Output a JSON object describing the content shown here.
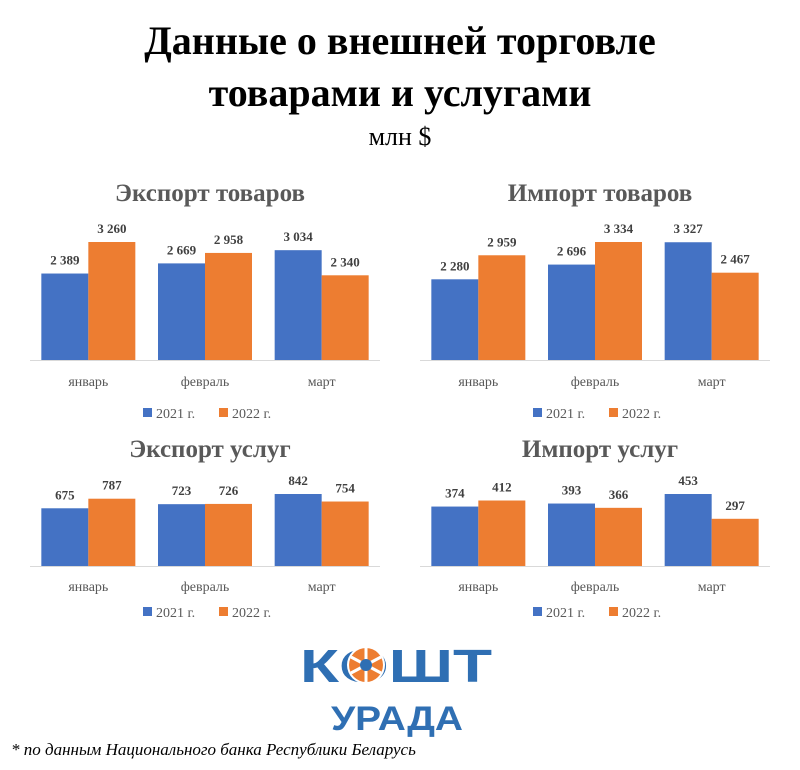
{
  "header": {
    "title_line1": "Данные о внешней торговле",
    "title_line2": "товарами и услугами",
    "unit": "млн $"
  },
  "colors": {
    "series_2021": "#4472c4",
    "series_2022": "#ed7d31"
  },
  "chart_data": [
    {
      "type": "bar",
      "title": "Экспорт товаров",
      "categories": [
        "январь",
        "февраль",
        "март"
      ],
      "series": [
        {
          "name": "2021 г.",
          "values": [
            2389,
            2669,
            3034
          ],
          "labels": [
            "2 389",
            "2 669",
            "3 034"
          ]
        },
        {
          "name": "2022 г.",
          "values": [
            3260,
            2958,
            2340
          ],
          "labels": [
            "3 260",
            "2 958",
            "2 340"
          ]
        }
      ],
      "ylim": [
        0,
        3600
      ]
    },
    {
      "type": "bar",
      "title": "Импорт товаров",
      "categories": [
        "январь",
        "февраль",
        "март"
      ],
      "series": [
        {
          "name": "2021 г.",
          "values": [
            2280,
            2696,
            3327
          ],
          "labels": [
            "2 280",
            "2 696",
            "3 327"
          ]
        },
        {
          "name": "2022 г.",
          "values": [
            2959,
            3334,
            2467
          ],
          "labels": [
            "2 959",
            "3 334",
            "2 467"
          ]
        }
      ],
      "ylim": [
        0,
        3600
      ]
    },
    {
      "type": "bar",
      "title": "Экспорт услуг",
      "categories": [
        "январь",
        "февраль",
        "март"
      ],
      "series": [
        {
          "name": "2021 г.",
          "values": [
            675,
            723,
            842
          ],
          "labels": [
            "675",
            "723",
            "842"
          ]
        },
        {
          "name": "2022 г.",
          "values": [
            787,
            726,
            754
          ],
          "labels": [
            "787",
            "726",
            "754"
          ]
        }
      ],
      "ylim": [
        0,
        950
      ]
    },
    {
      "type": "bar",
      "title": "Импорт услуг",
      "categories": [
        "январь",
        "февраль",
        "март"
      ],
      "series": [
        {
          "name": "2021 г.",
          "values": [
            374,
            393,
            453
          ],
          "labels": [
            "374",
            "393",
            "453"
          ]
        },
        {
          "name": "2022 г.",
          "values": [
            412,
            366,
            297
          ],
          "labels": [
            "412",
            "366",
            "297"
          ]
        }
      ],
      "ylim": [
        0,
        950
      ]
    }
  ],
  "logo": {
    "line1": "КОШТ",
    "line2": "УРАДА"
  },
  "footnote": "* по данным Национального банка Республики Беларусь"
}
